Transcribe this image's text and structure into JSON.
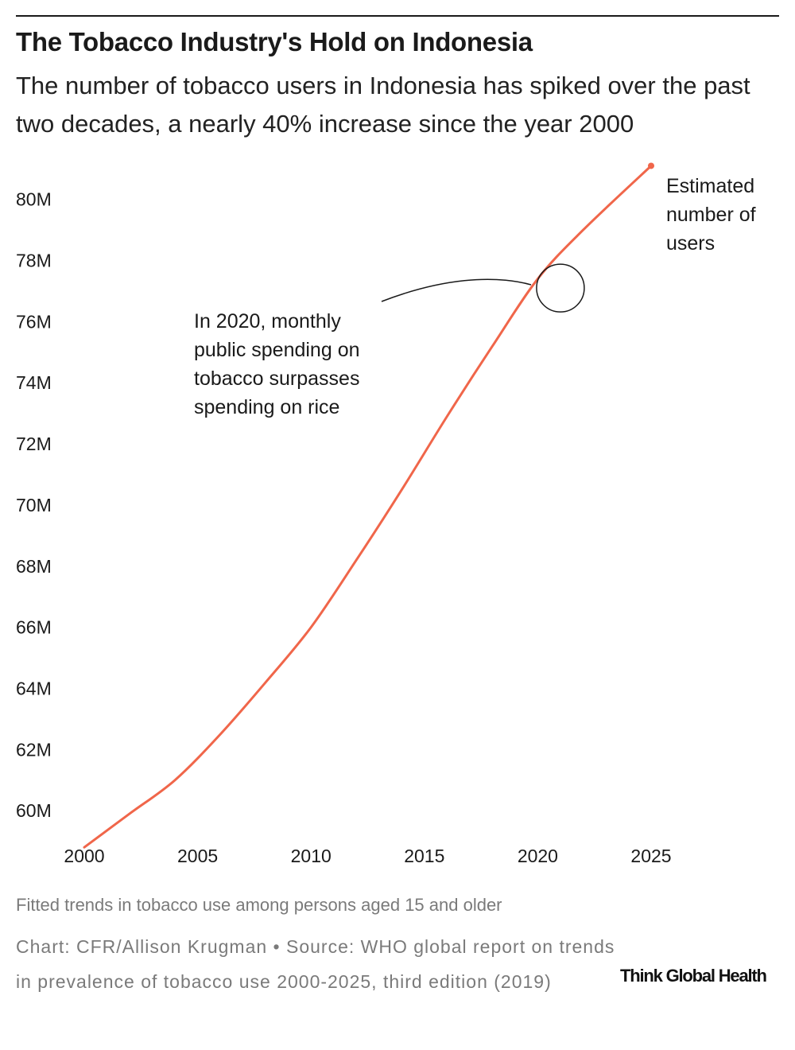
{
  "header": {
    "title": "The Tobacco Industry's Hold on Indonesia",
    "subtitle": "The number of tobacco users in Indonesia has spiked over the past two decades, a nearly 40% increase since the year 2000"
  },
  "chart_data": {
    "type": "line",
    "title": "The Tobacco Industry's Hold on Indonesia",
    "subtitle": "The number of tobacco users in Indonesia has spiked over the past two decades, a nearly 40% increase since the year 2000",
    "xlabel": "",
    "ylabel": "",
    "x_ticks": [
      "2000",
      "2005",
      "2010",
      "2015",
      "2020",
      "2025"
    ],
    "y_ticks": [
      "60M",
      "62M",
      "64M",
      "66M",
      "68M",
      "70M",
      "72M",
      "74M",
      "76M",
      "78M",
      "80M"
    ],
    "xlim": [
      2000,
      2025
    ],
    "ylim": [
      59.3,
      80.8
    ],
    "grid": false,
    "line_color": "#f0664a",
    "series": [
      {
        "name": "Estimated number of users",
        "x": [
          2000,
          2002,
          2004,
          2006,
          2008,
          2010,
          2012,
          2014,
          2016,
          2018,
          2020,
          2022,
          2025
        ],
        "y": [
          58.8,
          59.9,
          61.0,
          62.5,
          64.2,
          66.0,
          68.2,
          70.5,
          72.9,
          75.2,
          77.4,
          79.0,
          81.1
        ]
      }
    ],
    "end_label": "Estimated number of users",
    "annotations": [
      {
        "year": 2021,
        "value": 77.1,
        "text": "In 2020, monthly public spending on tobacco surpasses spending on rice"
      }
    ]
  },
  "footer": {
    "note": "Fitted trends in tobacco use among persons aged 15 and older",
    "credit": "Chart: CFR/Allison Krugman • Source: WHO global report on trends in prevalence of tobacco use 2000-2025, third edition (2019)",
    "logo": "Think Global Health"
  }
}
